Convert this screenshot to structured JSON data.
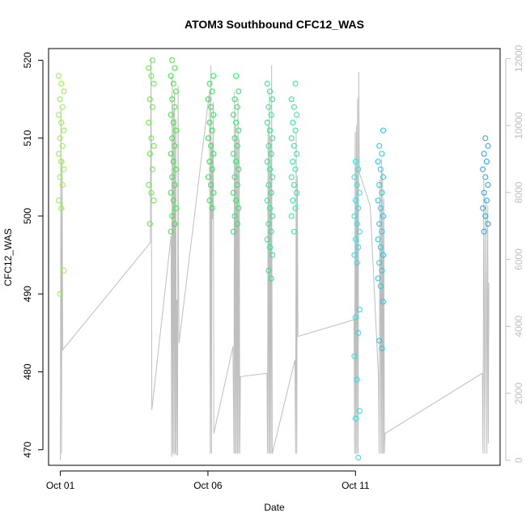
{
  "chart_data": {
    "type": "scatter",
    "title": "ATOM3 Southbound CFC12_WAS",
    "xlabel": "Date",
    "ylabel": "CFC12_WAS",
    "x_ticks": [
      "Oct 01",
      "Oct 06",
      "Oct 11"
    ],
    "x_tick_days": [
      1,
      6,
      11
    ],
    "xlim_days": [
      0.6,
      15.9
    ],
    "ylim": [
      468,
      521.5
    ],
    "y_ticks": [
      470,
      480,
      490,
      500,
      510,
      520
    ],
    "right_axis": {
      "label": "",
      "ylim": [
        -150,
        12300
      ],
      "ticks": [
        0,
        2000,
        4000,
        6000,
        8000,
        10000,
        12000
      ],
      "color": "#bebebe"
    },
    "grid": false,
    "series": [
      {
        "day": 1.03,
        "color": "#8cf53c",
        "values": [
          518,
          517,
          516,
          515,
          514,
          513,
          512,
          511,
          510,
          509,
          508,
          507,
          506,
          505,
          504,
          502,
          501,
          493,
          490
        ]
      },
      {
        "day": 4.08,
        "color": "#5af032",
        "values": [
          520,
          519,
          518,
          517,
          515,
          514,
          512,
          510,
          509,
          508,
          506,
          504,
          503,
          502,
          499
        ]
      },
      {
        "day": 4.83,
        "color": "#32eb32",
        "values": [
          520,
          519,
          518,
          517,
          516,
          515,
          514,
          513,
          512,
          511,
          510,
          509,
          508,
          507,
          506,
          505,
          504,
          503,
          502,
          501,
          500,
          499,
          498
        ]
      },
      {
        "day": 6.1,
        "color": "#1eeb46",
        "values": [
          518,
          517,
          516,
          515,
          514,
          513,
          512,
          511,
          510,
          509,
          508,
          507,
          506,
          505,
          504,
          503,
          502,
          501
        ]
      },
      {
        "day": 6.95,
        "color": "#1eeb5a",
        "values": [
          518,
          516,
          515,
          514,
          513,
          512,
          511,
          510,
          509,
          508,
          507,
          506,
          505,
          504,
          503,
          502,
          501,
          500,
          499,
          498
        ]
      },
      {
        "day": 8.1,
        "color": "#1eeb82",
        "values": [
          517,
          516,
          515,
          514,
          513,
          512,
          511,
          510,
          509,
          508,
          507,
          506,
          505,
          504,
          503,
          502,
          501,
          500,
          499,
          498,
          497,
          496,
          495,
          493,
          492
        ]
      },
      {
        "day": 8.92,
        "color": "#1eeb96",
        "values": [
          517,
          515,
          514,
          513,
          512,
          511,
          510,
          509,
          508,
          507,
          506,
          505,
          504,
          503,
          502,
          501,
          500,
          498
        ]
      },
      {
        "day": 11.05,
        "color": "#19e6e6",
        "values": [
          507,
          506,
          505,
          504,
          503,
          502,
          501,
          500,
          499,
          498,
          497,
          496,
          495,
          494,
          488,
          487,
          485,
          482,
          479,
          475,
          474,
          469
        ]
      },
      {
        "day": 11.85,
        "color": "#19c8eb",
        "values": [
          511,
          509,
          508,
          507,
          506,
          505,
          504,
          503,
          502,
          501,
          500,
          499,
          498,
          497,
          496,
          495,
          494,
          493,
          492,
          491,
          489,
          484,
          483
        ]
      },
      {
        "day": 15.4,
        "color": "#1ea0f0",
        "values": [
          510,
          509,
          508,
          507,
          506,
          505,
          504,
          503,
          502,
          501,
          500,
          499,
          498
        ]
      }
    ],
    "altitude_trace": {
      "color": "#bebebe",
      "points": [
        [
          1.0,
          0
        ],
        [
          1.02,
          10500
        ],
        [
          1.04,
          200
        ],
        [
          1.06,
          9000
        ],
        [
          1.08,
          3300
        ],
        [
          4.05,
          6500
        ],
        [
          4.07,
          12000
        ],
        [
          4.09,
          6200
        ],
        [
          4.1,
          1500
        ],
        [
          4.75,
          6700
        ],
        [
          4.77,
          100
        ],
        [
          4.79,
          11500
        ],
        [
          4.81,
          200
        ],
        [
          4.83,
          10500
        ],
        [
          4.85,
          150
        ],
        [
          4.87,
          11000
        ],
        [
          4.89,
          200
        ],
        [
          4.91,
          10200
        ],
        [
          4.93,
          150
        ],
        [
          4.95,
          4800
        ],
        [
          4.97,
          150
        ],
        [
          4.99,
          11200
        ],
        [
          5.0,
          6200
        ],
        [
          5.02,
          3500
        ],
        [
          6.05,
          11000
        ],
        [
          6.08,
          200
        ],
        [
          6.1,
          11800
        ],
        [
          6.12,
          200
        ],
        [
          6.14,
          9500
        ],
        [
          6.16,
          7200
        ],
        [
          6.18,
          10700
        ],
        [
          6.2,
          800
        ],
        [
          6.85,
          3400
        ],
        [
          6.88,
          200
        ],
        [
          6.9,
          11000
        ],
        [
          6.92,
          200
        ],
        [
          6.94,
          10000
        ],
        [
          6.96,
          200
        ],
        [
          6.98,
          9700
        ],
        [
          7.0,
          200
        ],
        [
          7.02,
          10800
        ],
        [
          7.04,
          200
        ],
        [
          7.06,
          9600
        ],
        [
          7.08,
          200
        ],
        [
          7.1,
          2500
        ],
        [
          8.0,
          2600
        ],
        [
          8.02,
          200
        ],
        [
          8.04,
          10000
        ],
        [
          8.06,
          200
        ],
        [
          8.08,
          11000
        ],
        [
          8.1,
          200
        ],
        [
          8.12,
          9600
        ],
        [
          8.14,
          200
        ],
        [
          8.16,
          11800
        ],
        [
          8.18,
          200
        ],
        [
          8.95,
          3000
        ],
        [
          8.97,
          200
        ],
        [
          8.99,
          9800
        ],
        [
          9.01,
          200
        ],
        [
          9.03,
          8500
        ],
        [
          9.05,
          3700
        ],
        [
          10.95,
          4200
        ],
        [
          10.97,
          200
        ],
        [
          10.99,
          9800
        ],
        [
          11.01,
          200
        ],
        [
          11.03,
          10000
        ],
        [
          11.05,
          200
        ],
        [
          11.07,
          10800
        ],
        [
          11.09,
          200
        ],
        [
          11.11,
          11600
        ],
        [
          11.13,
          8600
        ],
        [
          11.5,
          7600
        ],
        [
          11.78,
          2500
        ],
        [
          11.8,
          200
        ],
        [
          11.83,
          8400
        ],
        [
          11.86,
          200
        ],
        [
          11.88,
          9000
        ],
        [
          11.9,
          200
        ],
        [
          11.92,
          8600
        ],
        [
          11.94,
          200
        ],
        [
          11.96,
          7800
        ],
        [
          11.98,
          200
        ],
        [
          12.0,
          800
        ],
        [
          15.3,
          2600
        ],
        [
          15.32,
          200
        ],
        [
          15.35,
          8400
        ],
        [
          15.38,
          200
        ],
        [
          15.42,
          7800
        ],
        [
          15.45,
          200
        ],
        [
          15.48,
          7600
        ],
        [
          15.5,
          500
        ],
        [
          15.52,
          5300
        ]
      ]
    }
  }
}
